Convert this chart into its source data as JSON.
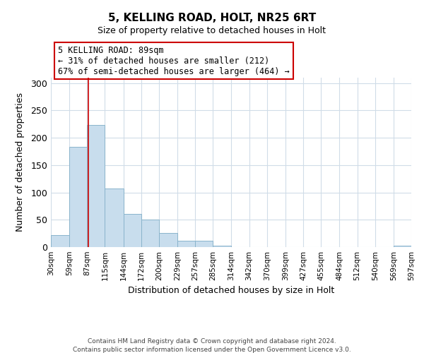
{
  "title": "5, KELLING ROAD, HOLT, NR25 6RT",
  "subtitle": "Size of property relative to detached houses in Holt",
  "xlabel": "Distribution of detached houses by size in Holt",
  "ylabel": "Number of detached properties",
  "bar_color": "#c8dded",
  "bar_edge_color": "#8ab4cc",
  "vline_color": "#cc0000",
  "vline_x": 89,
  "bin_edges": [
    30,
    59,
    87,
    115,
    144,
    172,
    200,
    229,
    257,
    285,
    314,
    342,
    370,
    399,
    427,
    455,
    484,
    512,
    540,
    569,
    597
  ],
  "bar_heights": [
    22,
    184,
    224,
    107,
    61,
    51,
    26,
    11,
    12,
    3,
    0,
    0,
    0,
    0,
    0,
    0,
    0,
    0,
    0,
    2
  ],
  "xlim": [
    30,
    597
  ],
  "ylim": [
    0,
    310
  ],
  "yticks": [
    0,
    50,
    100,
    150,
    200,
    250,
    300
  ],
  "xtick_labels": [
    "30sqm",
    "59sqm",
    "87sqm",
    "115sqm",
    "144sqm",
    "172sqm",
    "200sqm",
    "229sqm",
    "257sqm",
    "285sqm",
    "314sqm",
    "342sqm",
    "370sqm",
    "399sqm",
    "427sqm",
    "455sqm",
    "484sqm",
    "512sqm",
    "540sqm",
    "569sqm",
    "597sqm"
  ],
  "annotation_title": "5 KELLING ROAD: 89sqm",
  "annotation_line1": "← 31% of detached houses are smaller (212)",
  "annotation_line2": "67% of semi-detached houses are larger (464) →",
  "footer_line1": "Contains HM Land Registry data © Crown copyright and database right 2024.",
  "footer_line2": "Contains public sector information licensed under the Open Government Licence v3.0.",
  "background_color": "#ffffff",
  "grid_color": "#d0dce8"
}
